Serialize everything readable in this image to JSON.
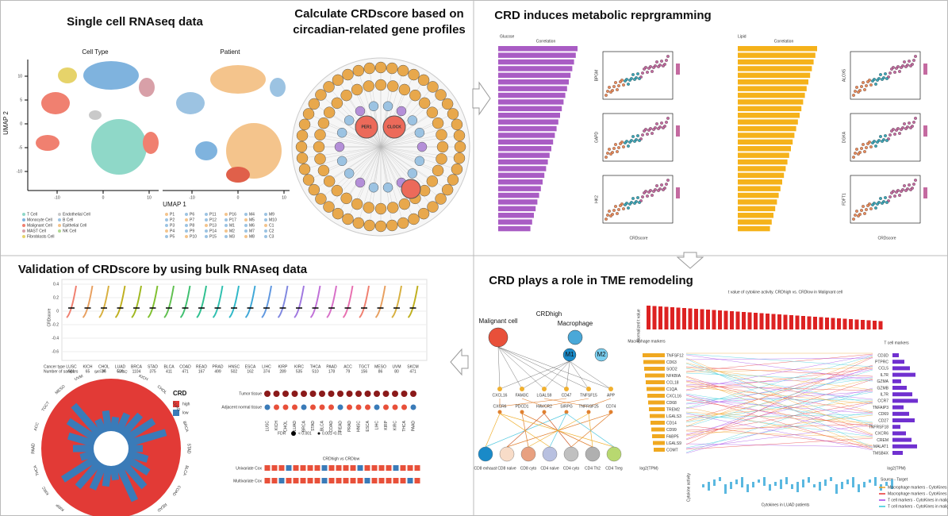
{
  "panel_a": {
    "title": "Single cell RNAseq data",
    "plot_titles": [
      "Cell Type",
      "Patient"
    ],
    "x_label": "UMAP 1",
    "y_label": "UMAP 2",
    "yticks": [
      10,
      5,
      0,
      -5,
      -10
    ],
    "xticks": [
      -10,
      0,
      10
    ],
    "cell_types": [
      "T Cell",
      "Monocyte Cell",
      "Malignant Cell",
      "MAST Cell",
      "Fibroblasts Cell",
      "Endothelial Cell",
      "B Cell",
      "Epithelial Cell",
      "NK Cell"
    ],
    "patients": [
      "P1",
      "P2",
      "P3",
      "P4",
      "P5",
      "P6",
      "P7",
      "P8",
      "P9",
      "P10",
      "P11",
      "P12",
      "P13",
      "P14",
      "P15",
      "P16",
      "P17",
      "M1",
      "M2",
      "M3",
      "M4",
      "M5",
      "M6",
      "M7",
      "M8",
      "M9",
      "M10",
      "C1",
      "C2",
      "C3"
    ]
  },
  "panel_b": {
    "title_lines": [
      "Calculate CRDscore based on",
      "circadian-related gene profiles"
    ],
    "hub_genes": [
      "PER1",
      "CLOCK"
    ]
  },
  "panel_c": {
    "title": "CRD induces metabolic reprgramming",
    "groups": [
      "Glucose",
      "Lipid"
    ],
    "bar_axis_label": "Correlation",
    "x_label": "CRDscore",
    "glucose_genes": [
      "BPGM",
      "GAPD",
      "HK2"
    ],
    "lipid_genes": [
      "ALOX5",
      "DGKA",
      "FDFT1"
    ]
  },
  "panel_d": {
    "title": "Validation of CRDscore by using bulk RNAseq data",
    "y_label": "CRDscore",
    "row_labels": [
      "Cancer type",
      "Number of samples"
    ],
    "cancers": [
      "LUSC",
      "KICH",
      "CHOL",
      "LUAD",
      "BRCA",
      "STAD",
      "BLCA",
      "COAD",
      "READ",
      "PRAD",
      "HNSC",
      "ESCA",
      "LIHC",
      "KIRP",
      "KIRC",
      "THCA",
      "PAAD",
      "ACC",
      "TGCT",
      "MESO",
      "UVM",
      "SKCM"
    ],
    "samples": [
      501,
      65,
      36,
      526,
      1104,
      375,
      411,
      471,
      167,
      499,
      502,
      162,
      374,
      289,
      535,
      510,
      178,
      79,
      156,
      86,
      80,
      471
    ],
    "yticks": [
      0.4,
      0.2,
      0,
      -0.2,
      -0.4,
      -0.6
    ],
    "legend_title": "CRD",
    "legend_items": [
      "high",
      "low"
    ],
    "tissue_rows": [
      "Tumor tissue",
      "Adjacent normal tissue"
    ],
    "fdr_label": "FDR",
    "fdr_items": [
      "< 0.001",
      "0.001~0.01"
    ],
    "cox_title": "CRDhigh vs CRDlow",
    "cox_rows": [
      "Univariate Cox",
      "Multivariate Cox"
    ]
  },
  "panel_e": {
    "title": "CRD plays a role in TME remodeling",
    "crd_label": "CRDhigh",
    "sources": [
      "Malignant cell",
      "Macrophage",
      "M1",
      "M2"
    ],
    "ligands": [
      "CXCL16",
      "FAM3C",
      "LGALS9",
      "CD47",
      "TNFSF15",
      "APP"
    ],
    "receptors": [
      "CXCR6",
      "PDCD1",
      "HAVCR2",
      "SIRPG",
      "TNFRSF25",
      "CD74"
    ],
    "targets": [
      "CD8 exhaust",
      "CD8 naive",
      "CD8 cyto",
      "CD4 naive",
      "CD4 cyto",
      "CD4 Th2",
      "CD4 Treg"
    ],
    "cytokine_title": "t value of cytokine activity. CRDhigh vs. CRDlow in Malignant cell",
    "y_label": "Normalized t value",
    "left_markers": "Macrophage markers",
    "right_markers": "T cell markers",
    "macrophage_genes": [
      "TNFSF12",
      "CD63",
      "SOD2",
      "NFKBIA",
      "CCL18",
      "C1QA",
      "CXCL16",
      "CD68",
      "TREM2",
      "LGALS3",
      "CD14",
      "CD99",
      "FABP5",
      "LGALS9",
      "COMT"
    ],
    "tcell_genes": [
      "CD3D",
      "PTPRC",
      "CCL5",
      "IL7R",
      "GZMA",
      "GZMB",
      "IL7R",
      "CCR7",
      "TNFAIP3",
      "CD69",
      "CD27",
      "TNFRSF18",
      "CXCR6",
      "CREM",
      "MALAT1",
      "TMSB4X"
    ],
    "tpm_label": "log2(TPM)",
    "activity_label": "Cytokine activity",
    "bottom_label": "Cytokines in LUAD patients",
    "source_title": "Source - Target",
    "source_items": [
      "Macrophage markers - CytoKines in",
      "Macrophage markers - CytoKines in",
      "T cell markers - CytoKines in malign",
      "T cell markers - CytoKines in malign"
    ]
  }
}
